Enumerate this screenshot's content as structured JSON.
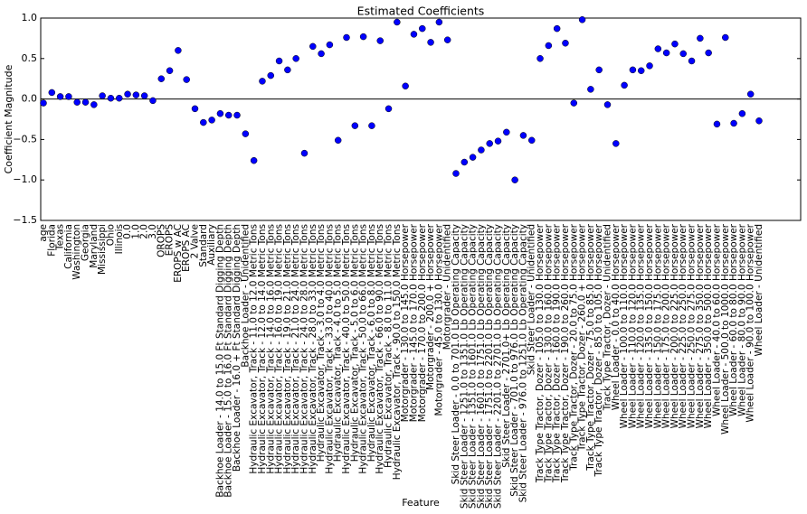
{
  "chart_data": {
    "type": "scatter",
    "title": "Estimated Coefficients",
    "x_label": "Feature",
    "y_label": "Coefficient Magnitude",
    "color": "#0000ff",
    "ylim": [
      -1.5,
      1.0
    ],
    "yticks": [
      {
        "value": 1.0,
        "label": "1.0"
      },
      {
        "value": 0.5,
        "label": "0.5"
      },
      {
        "value": 0.0,
        "label": "0.0"
      },
      {
        "value": -0.5,
        "label": "−0.5"
      },
      {
        "value": -1.0,
        "label": "−1.0"
      },
      {
        "value": -1.5,
        "label": "−1.5"
      }
    ],
    "categories": [
      "age",
      "Florida",
      "Texas",
      "California",
      "Washington",
      "Georgia",
      "Maryland",
      "Mississippi",
      "Ohio",
      "Illinois",
      "0.0",
      "1.0",
      "2.0",
      "3.0",
      "OROPS",
      "EROPS",
      "EROPS w AC",
      "EROPS AC",
      "2 Valve",
      "Standard",
      "Auxiliary",
      "Backhoe Loader - 14.0 to 15.0 Ft Standard Digging Depth",
      "Backhoe Loader - 15.0 to 16.0 Ft Standard Digging Depth",
      "Backhoe Loader - 16.0 + Ft Standard Digging Depth",
      "Backhoe Loader - Unidentified",
      "Hydraulic Excavator, Track - 11.0 to 12.0 Metric Tons",
      "Hydraulic Excavator, Track - 12.0 to 14.0 Metric Tons",
      "Hydraulic Excavator, Track - 14.0 to 16.0 Metric Tons",
      "Hydraulic Excavator, Track - 16.0 to 19.0 Metric Tons",
      "Hydraulic Excavator, Track - 19.0 to 21.0 Metric Tons",
      "Hydraulic Excavator, Track - 21.0 to 24.0 Metric Tons",
      "Hydraulic Excavator, Track - 24.0 to 28.0 Metric Tons",
      "Hydraulic Excavator, Track - 28.0 to 33.0 Metric Tons",
      "Hydraulic Excavator, Track - 3.0 to 4.0 Metric Tons",
      "Hydraulic Excavator, Track - 33.0 to 40.0 Metric Tons",
      "Hydraulic Excavator, Track - 4.0 to 5.0 Metric Tons",
      "Hydraulic Excavator, Track - 40.0 to 50.0 Metric Tons",
      "Hydraulic Excavator, Track - 5.0 to 6.0 Metric Tons",
      "Hydraulic Excavator, Track - 50.0 to 66.0 Metric Tons",
      "Hydraulic Excavator, Track - 6.0 to 8.0 Metric Tons",
      "Hydraulic Excavator, Track - 66.0 to 90.0 Metric Tons",
      "Hydraulic Excavator, Track - 8.0 to 11.0 Metric Tons",
      "Hydraulic Excavator, Track - 90.0 to 150.0 Metric Tons",
      "Motorgrader - 130.0 to 145.0 Horsepower",
      "Motorgrader - 145.0 to 170.0 Horsepower",
      "Motorgrader - 170.0 to 200.0 Horsepower",
      "Motorgrader - 200.0 + Horsepower",
      "Motorgrader - 45.0 to 130.0 Horsepower",
      "Motorgrader - Unidentified",
      "Skid Steer Loader - 0.0 to 701.0 Lb Operating Capacity",
      "Skid Steer Loader - 1251.0 to 1351.0 Lb Operating Capacity",
      "Skid Steer Loader - 1351.0 to 1601.0 Lb Operating Capacity",
      "Skid Steer Loader - 1601.0 to 1751.0 Lb Operating Capacity",
      "Skid Steer Loader - 1751.0 to 2201.0 Lb Operating Capacity",
      "Skid Steer Loader - 2201.0 to 2701.0 Lb Operating Capacity",
      "Skid Steer Loader - 2701.0+ Lb Operating Capacity",
      "Skid Steer Loader - 701.0 to 976.0 Lb Operating Capacity",
      "Skid Steer Loader - 976.0 to 1251.0 Lb Operating Capacity",
      "Skid Steer Loader - Unidentified",
      "Track Type Tractor, Dozer - 105.0 to 130.0 Horsepower",
      "Track Type Tractor, Dozer - 130.0 to 160.0 Horsepower",
      "Track Type Tractor, Dozer - 160.0 to 190.0 Horsepower",
      "Track Type Tractor, Dozer - 190.0 to 260.0 Horsepower",
      "Track Type Tractor, Dozer - 20.0 to 75.0 Horsepower",
      "Track Type Tractor, Dozer - 260.0 + Horsepower",
      "Track Type Tractor, Dozer - 75.0 to 85.0 Horsepower",
      "Track Type Tractor, Dozer - 85.0 to 105.0 Horsepower",
      "Track Type Tractor, Dozer - Unidentified",
      "Wheel Loader - 0.0 to 40.0 Horsepower",
      "Wheel Loader - 100.0 to 110.0 Horsepower",
      "Wheel Loader - 110.0 to 120.0 Horsepower",
      "Wheel Loader - 120.0 to 135.0 Horsepower",
      "Wheel Loader - 135.0 to 150.0 Horsepower",
      "Wheel Loader - 150.0 to 175.0 Horsepower",
      "Wheel Loader - 175.0 to 200.0 Horsepower",
      "Wheel Loader - 200.0 to 225.0 Horsepower",
      "Wheel Loader - 225.0 to 250.0 Horsepower",
      "Wheel Loader - 250.0 to 275.0 Horsepower",
      "Wheel Loader - 275.0 to 350.0 Horsepower",
      "Wheel Loader - 350.0 to 500.0 Horsepower",
      "Wheel Loader - 40.0 to 60.0 Horsepower",
      "Wheel Loader - 500.0 to 1000.0 Horsepower",
      "Wheel Loader - 60.0 to 80.0 Horsepower",
      "Wheel Loader - 80.0 to 90.0 Horsepower",
      "Wheel Loader - 90.0 to 100.0 Horsepower",
      "Wheel Loader - Unidentified"
    ],
    "values": [
      -0.05,
      0.08,
      0.03,
      0.03,
      -0.04,
      -0.04,
      -0.07,
      0.04,
      0.01,
      0.01,
      0.06,
      0.05,
      0.04,
      -0.02,
      0.25,
      0.35,
      0.6,
      0.24,
      -0.12,
      -0.29,
      -0.26,
      -0.18,
      -0.2,
      -0.2,
      -0.43,
      -0.76,
      0.22,
      0.29,
      0.47,
      0.36,
      0.5,
      -0.67,
      0.65,
      0.56,
      0.67,
      -0.51,
      0.76,
      -0.33,
      0.77,
      -0.33,
      0.72,
      -0.12,
      0.95,
      0.16,
      0.8,
      0.87,
      0.7,
      0.95,
      0.73,
      -0.92,
      -0.78,
      -0.72,
      -0.63,
      -0.55,
      -0.52,
      -0.41,
      -1.0,
      -0.45,
      -0.51,
      0.5,
      0.66,
      0.87,
      0.69,
      -0.05,
      0.98,
      0.12,
      0.36,
      -0.07,
      -0.55,
      0.17,
      0.36,
      0.35,
      0.41,
      0.62,
      0.57,
      0.68,
      0.56,
      0.47,
      0.75,
      0.57,
      -0.31,
      0.76,
      -0.3,
      -0.18,
      0.06,
      -0.27
    ]
  }
}
